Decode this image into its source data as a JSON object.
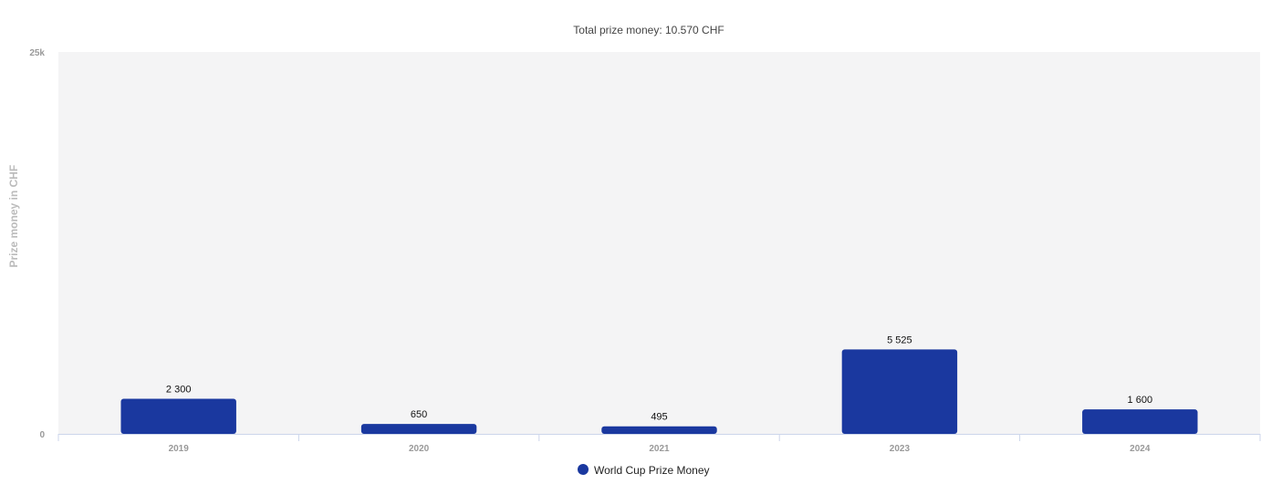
{
  "chart_data": {
    "type": "bar",
    "title": "Total prize money: 10.570 CHF",
    "ylabel": "Prize money in CHF",
    "xlabel": "",
    "categories": [
      "2019",
      "2020",
      "2021",
      "2023",
      "2024"
    ],
    "series": [
      {
        "name": "World Cup Prize Money",
        "values": [
          2300,
          650,
          495,
          5525,
          1600
        ],
        "labels": [
          "2 300",
          "650",
          "495",
          "5 525",
          "1 600"
        ],
        "color": "#1a389f"
      }
    ],
    "ylim": [
      0,
      25000
    ],
    "yticks": [
      {
        "value": 0,
        "label": "0"
      },
      {
        "value": 25000,
        "label": "25k"
      }
    ],
    "grid": false,
    "legend_position": "bottom-center",
    "plot_background": "#f4f4f5"
  }
}
